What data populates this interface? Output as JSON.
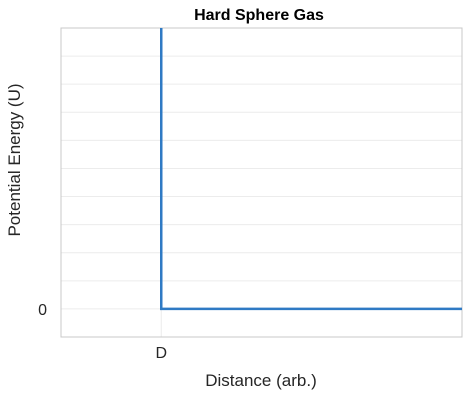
{
  "chart_data": {
    "type": "line",
    "title": "Hard Sphere Gas",
    "xlabel": "Distance (arb.)",
    "ylabel": "Potential Energy (U)",
    "xlim": [
      0,
      1
    ],
    "ylim": [
      -0.1,
      1
    ],
    "x_ticks": [
      {
        "value": 0.25,
        "label": "D"
      }
    ],
    "y_ticks": [
      {
        "value": 0,
        "label": "0"
      }
    ],
    "grid": true,
    "series": [
      {
        "x": [
          0.25,
          0.25,
          1.0
        ],
        "y": [
          1.0,
          0,
          0
        ],
        "color": "#2f7ac4"
      }
    ]
  }
}
